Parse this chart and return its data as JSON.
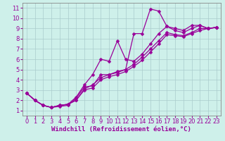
{
  "xlabel": "Windchill (Refroidissement éolien,°C)",
  "background_color": "#cef0ea",
  "grid_color": "#aacccc",
  "line_color": "#990099",
  "xlim": [
    -0.5,
    23.5
  ],
  "ylim": [
    0.5,
    11.5
  ],
  "xticks": [
    0,
    1,
    2,
    3,
    4,
    5,
    6,
    7,
    8,
    9,
    10,
    11,
    12,
    13,
    14,
    15,
    16,
    17,
    18,
    19,
    20,
    21,
    22,
    23
  ],
  "yticks": [
    1,
    2,
    3,
    4,
    5,
    6,
    7,
    8,
    9,
    10,
    11
  ],
  "lines": [
    {
      "x": [
        0,
        1,
        2,
        3,
        4,
        5,
        6,
        7,
        8,
        9,
        10,
        11,
        12,
        13,
        14,
        15,
        16,
        17,
        18,
        19,
        20,
        21,
        22,
        23
      ],
      "y": [
        2.7,
        2.0,
        1.5,
        1.3,
        1.4,
        1.5,
        2.2,
        3.3,
        3.4,
        4.5,
        4.5,
        4.8,
        5.0,
        8.5,
        8.5,
        10.9,
        10.7,
        9.2,
        9.0,
        8.8,
        9.3,
        9.3,
        9.0,
        9.1
      ]
    },
    {
      "x": [
        0,
        1,
        2,
        3,
        4,
        5,
        6,
        7,
        8,
        9,
        10,
        11,
        12,
        13,
        14,
        15,
        16,
        17,
        18,
        19,
        20,
        21,
        22,
        23
      ],
      "y": [
        2.7,
        2.0,
        1.5,
        1.3,
        1.5,
        1.6,
        2.3,
        3.5,
        4.5,
        6.0,
        5.8,
        7.8,
        6.0,
        5.8,
        6.5,
        7.5,
        8.5,
        9.2,
        8.8,
        8.6,
        9.0,
        9.3,
        9.0,
        9.1
      ]
    },
    {
      "x": [
        0,
        1,
        2,
        3,
        4,
        5,
        6,
        7,
        8,
        9,
        10,
        11,
        12,
        13,
        14,
        15,
        16,
        17,
        18,
        19,
        20,
        21,
        22,
        23
      ],
      "y": [
        2.7,
        2.0,
        1.5,
        1.3,
        1.5,
        1.6,
        2.0,
        3.0,
        3.2,
        4.0,
        4.3,
        4.5,
        4.8,
        5.3,
        5.9,
        6.7,
        7.5,
        8.4,
        8.3,
        8.2,
        8.5,
        8.8,
        9.0,
        9.1
      ]
    },
    {
      "x": [
        0,
        1,
        2,
        3,
        4,
        5,
        6,
        7,
        8,
        9,
        10,
        11,
        12,
        13,
        14,
        15,
        16,
        17,
        18,
        19,
        20,
        21,
        22,
        23
      ],
      "y": [
        2.7,
        2.0,
        1.5,
        1.3,
        1.5,
        1.6,
        2.0,
        3.1,
        3.5,
        4.2,
        4.5,
        4.7,
        5.0,
        5.5,
        6.2,
        7.0,
        7.8,
        8.6,
        8.4,
        8.3,
        8.6,
        9.0,
        9.0,
        9.1
      ]
    }
  ],
  "xlabel_fontsize": 6.5,
  "tick_fontsize": 6,
  "linewidth": 0.9,
  "markersize": 2.5
}
